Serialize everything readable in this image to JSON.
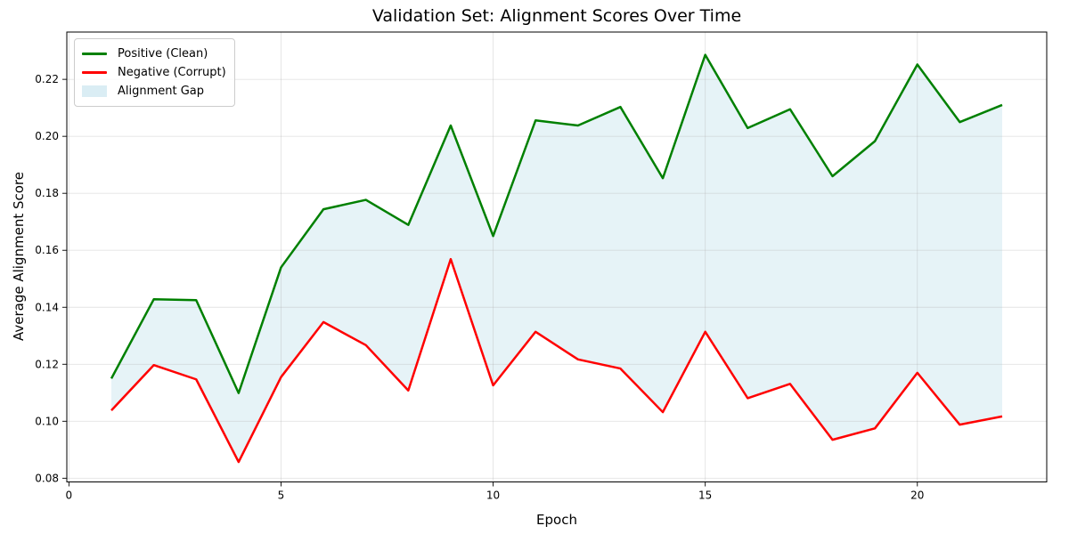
{
  "chart_data": {
    "type": "line",
    "title": "Validation Set: Alignment Scores Over Time",
    "xlabel": "Epoch",
    "ylabel": "Average Alignment Score",
    "x": [
      1,
      2,
      3,
      4,
      5,
      6,
      7,
      8,
      9,
      10,
      11,
      12,
      13,
      14,
      15,
      16,
      17,
      18,
      19,
      20,
      21,
      22
    ],
    "series": [
      {
        "name": "Positive (Clean)",
        "color": "#008000",
        "values": [
          0.115,
          0.1428,
          0.1425,
          0.1099,
          0.154,
          0.1744,
          0.1777,
          0.1689,
          0.2038,
          0.165,
          0.2056,
          0.2038,
          0.2103,
          0.1853,
          0.2286,
          0.2029,
          0.2095,
          0.186,
          0.1983,
          0.2252,
          0.205,
          0.211
        ]
      },
      {
        "name": "Negative (Corrupt)",
        "color": "#ff0000",
        "values": [
          0.1038,
          0.1197,
          0.1147,
          0.0857,
          0.1155,
          0.1348,
          0.1267,
          0.1108,
          0.1569,
          0.1126,
          0.1314,
          0.1217,
          0.1185,
          0.1032,
          0.1314,
          0.1081,
          0.1131,
          0.0935,
          0.0975,
          0.117,
          0.0988,
          0.1017
        ]
      }
    ],
    "fill_between": {
      "label": "Alignment Gap",
      "color": "#add8e6",
      "opacity": 0.3
    },
    "xlim": [
      -0.05,
      23.05
    ],
    "ylim": [
      0.0787,
      0.2366
    ],
    "xticks": [
      {
        "v": 0,
        "label": "0"
      },
      {
        "v": 5,
        "label": "5"
      },
      {
        "v": 10,
        "label": "10"
      },
      {
        "v": 15,
        "label": "15"
      },
      {
        "v": 20,
        "label": "20"
      }
    ],
    "yticks": [
      {
        "v": 0.08,
        "label": "0.08"
      },
      {
        "v": 0.1,
        "label": "0.10"
      },
      {
        "v": 0.12,
        "label": "0.12"
      },
      {
        "v": 0.14,
        "label": "0.14"
      },
      {
        "v": 0.16,
        "label": "0.16"
      },
      {
        "v": 0.18,
        "label": "0.18"
      },
      {
        "v": 0.2,
        "label": "0.20"
      },
      {
        "v": 0.22,
        "label": "0.22"
      }
    ],
    "grid": true,
    "grid_color": "#b0b0b0",
    "grid_opacity": 0.35,
    "spine_color": "#000000",
    "legend_position": "upper-left",
    "line_width": 2.5
  }
}
